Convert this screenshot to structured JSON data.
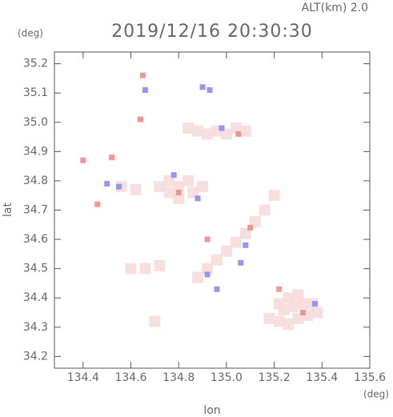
{
  "chart_data": {
    "type": "scatter",
    "title": "2019/12/16 20:30:30",
    "subtitle": "ALT(km)  2.0",
    "x_label": "lon",
    "y_label": "lat",
    "x_unit": "(deg)",
    "y_unit": "(deg)",
    "xlim": [
      134.28,
      135.6
    ],
    "ylim": [
      34.16,
      35.24
    ],
    "xticks": [
      134.4,
      134.6,
      134.8,
      {
        "value": 135.0,
        "label": "135.0"
      },
      135.2,
      135.4,
      135.6
    ],
    "yticks": [
      34.2,
      34.3,
      34.4,
      34.5,
      34.6,
      34.7,
      34.8,
      34.9,
      {
        "value": 35.0,
        "label": "35.0"
      },
      35.1,
      35.2
    ],
    "series": [
      {
        "color": "#f7dcdc",
        "x": [
          135.18,
          135.22,
          135.26,
          135.3,
          135.34,
          135.38,
          135.24,
          135.28,
          135.32,
          135.36,
          135.26,
          135.3,
          135.22,
          134.84,
          134.88,
          134.92,
          134.96,
          135.0,
          135.04,
          135.08,
          134.72,
          134.76,
          134.8,
          134.84,
          134.8,
          134.86,
          134.9,
          134.76,
          134.56,
          134.62,
          134.88,
          134.92,
          134.96,
          135.0,
          135.04,
          135.08,
          135.12,
          135.16,
          135.2,
          134.6,
          134.66,
          134.72,
          134.7
        ],
        "y": [
          34.33,
          34.32,
          34.31,
          34.33,
          34.34,
          34.35,
          34.36,
          34.37,
          34.38,
          34.38,
          34.4,
          34.41,
          34.38,
          34.98,
          34.97,
          34.96,
          34.97,
          34.96,
          34.98,
          34.97,
          34.78,
          34.8,
          34.78,
          34.8,
          34.74,
          34.76,
          34.78,
          34.76,
          34.78,
          34.77,
          34.47,
          34.5,
          34.53,
          34.56,
          34.59,
          34.62,
          34.66,
          34.7,
          34.75,
          34.5,
          34.5,
          34.51,
          34.32
        ]
      },
      {
        "color": "#8a8cf0",
        "x": [
          134.9,
          134.93,
          134.66,
          134.78,
          134.88,
          134.55,
          134.5,
          135.08,
          134.92,
          135.37,
          135.06,
          134.96,
          134.98
        ],
        "y": [
          35.12,
          35.11,
          35.11,
          34.82,
          34.74,
          34.78,
          34.79,
          34.58,
          34.48,
          34.38,
          34.52,
          34.43,
          34.98
        ]
      },
      {
        "color": "#f08a8a",
        "x": [
          134.65,
          134.64,
          134.4,
          134.52,
          134.46,
          135.05,
          134.8,
          135.32,
          134.92,
          135.22,
          135.1
        ],
        "y": [
          35.16,
          35.01,
          34.87,
          34.88,
          34.72,
          34.96,
          34.76,
          34.35,
          34.6,
          34.43,
          34.64
        ]
      }
    ]
  }
}
